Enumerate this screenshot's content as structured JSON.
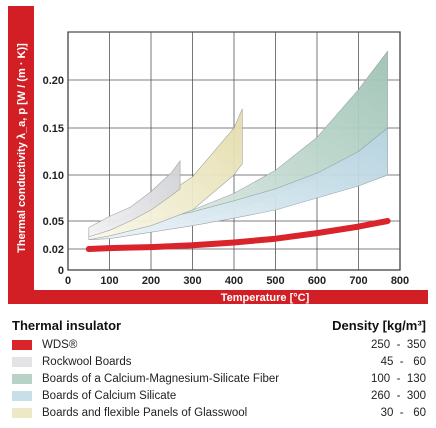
{
  "chart_data": {
    "type": "area",
    "xlabel": "Temperature [°C]",
    "ylabel": "Thermal conductivity λ_a, p [W / (m · K)]",
    "xlim": [
      0,
      800
    ],
    "ylim": [
      0,
      0.25
    ],
    "x_ticks": [
      "0",
      "100",
      "200",
      "300",
      "400",
      "500",
      "600",
      "700",
      "800"
    ],
    "y_ticks": [
      "0",
      "0.02",
      "0.05",
      "0.10",
      "0.15",
      "0.20"
    ],
    "y_tick_values": [
      0,
      0.02,
      0.05,
      0.1,
      0.15,
      0.2
    ],
    "grid": true,
    "series": [
      {
        "name": "WDS®",
        "color": "#d9242b",
        "kind": "line",
        "x": [
          50,
          100,
          200,
          300,
          400,
          500,
          600,
          700,
          770
        ],
        "y": [
          0.02,
          0.021,
          0.022,
          0.024,
          0.027,
          0.031,
          0.037,
          0.044,
          0.05
        ]
      },
      {
        "name": "Rockwool Boards",
        "color": "#e4e4e6",
        "kind": "band",
        "x": [
          50,
          100,
          150,
          200,
          250,
          270
        ],
        "y_low": [
          0.033,
          0.04,
          0.05,
          0.062,
          0.078,
          0.085
        ],
        "y_high": [
          0.043,
          0.055,
          0.065,
          0.082,
          0.103,
          0.115
        ]
      },
      {
        "name": "Boards of a Calcium-Magnesium-Silicate Fiber",
        "color": "#b7d3c7",
        "kind": "band",
        "x": [
          50,
          100,
          200,
          300,
          400,
          500,
          600,
          700,
          770
        ],
        "y_low": [
          0.03,
          0.032,
          0.04,
          0.05,
          0.062,
          0.078,
          0.098,
          0.125,
          0.15
        ],
        "y_high": [
          0.036,
          0.04,
          0.05,
          0.062,
          0.08,
          0.105,
          0.14,
          0.19,
          0.23
        ]
      },
      {
        "name": "Boards of Calcium Silicate",
        "color": "#c8dfe8",
        "kind": "band",
        "x": [
          50,
          100,
          200,
          300,
          400,
          500,
          600,
          700,
          770
        ],
        "y_low": [
          0.03,
          0.031,
          0.038,
          0.045,
          0.053,
          0.062,
          0.075,
          0.088,
          0.1
        ],
        "y_high": [
          0.036,
          0.04,
          0.05,
          0.06,
          0.072,
          0.085,
          0.102,
          0.125,
          0.15
        ]
      },
      {
        "name": "Boards and flexible Panels of Glasswool",
        "color": "#ede8c6",
        "kind": "band",
        "x": [
          50,
          100,
          200,
          300,
          400,
          420
        ],
        "y_low": [
          0.03,
          0.034,
          0.045,
          0.062,
          0.1,
          0.112
        ],
        "y_high": [
          0.038,
          0.046,
          0.068,
          0.098,
          0.15,
          0.17
        ]
      }
    ]
  },
  "legend": {
    "header_left": "Thermal insulator",
    "header_right": "Density  [kg/m³]",
    "items": [
      {
        "label": "WDS®",
        "density": "250  -  350",
        "color": "#d9242b"
      },
      {
        "label": "Rockwool Boards",
        "density": "45  -   60",
        "color": "#e4e4e6"
      },
      {
        "label": "Boards of a Calcium-Magnesium-Silicate Fiber",
        "density": "100  -  130",
        "color": "#b7d3c7"
      },
      {
        "label": "Boards of Calcium Silicate",
        "density": "260  -  300",
        "color": "#c8dfe8"
      },
      {
        "label": "Boards and flexible Panels of Glasswool",
        "density": "30  -   60",
        "color": "#ede8c6"
      }
    ]
  }
}
